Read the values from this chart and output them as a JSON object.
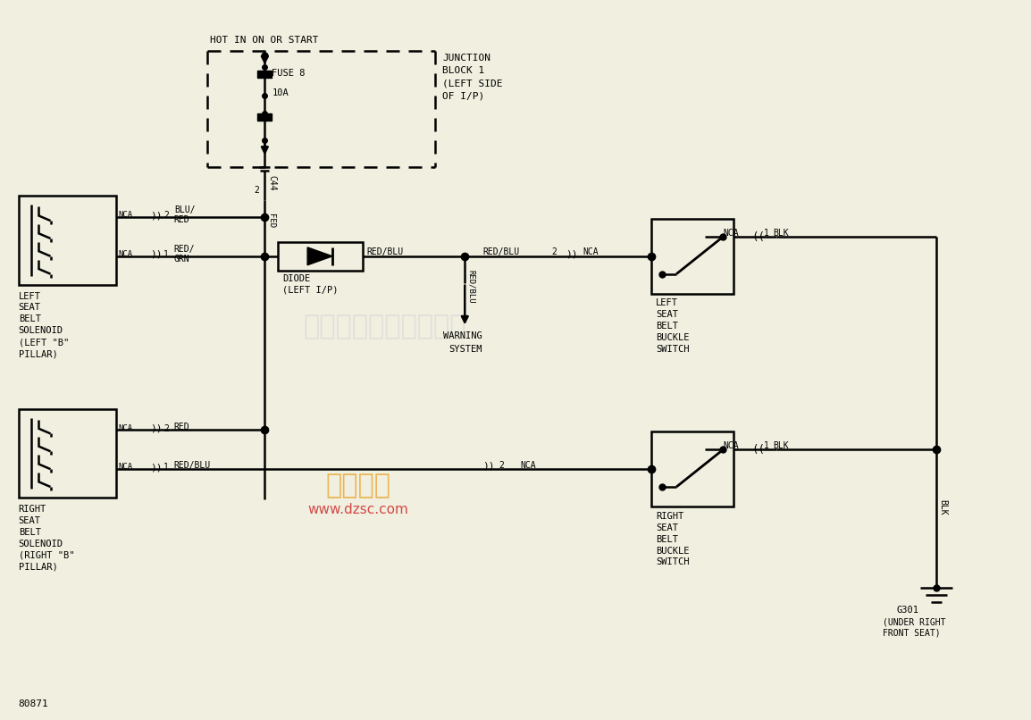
{
  "bg_color": "#f0efe0",
  "line_color": "#000000",
  "fig_width": 11.54,
  "fig_height": 8.06,
  "dpi": 100,
  "bottom_label": "80871",
  "junction_label": [
    "JUNCTION",
    "BLOCK 1",
    "(LEFT SIDE",
    "OF I/P)"
  ],
  "hot_label": "HOT IN ON OR START",
  "fuse_label": "FUSE 8",
  "fuse_amp": "10A",
  "connector_label": "C44",
  "connector_pin": "2",
  "fed_label": "FED",
  "diode_label": [
    "DIODE",
    "(LEFT I/P)"
  ],
  "warning_label": [
    "WARNING",
    "SYSTEM"
  ],
  "redblu_label": "RED/BLU",
  "left_sol_label": [
    "LEFT",
    "SEAT",
    "BELT",
    "SOLENOID",
    "(LEFT \"B\"",
    "PILLAR)"
  ],
  "right_sol_label": [
    "RIGHT",
    "SEAT",
    "BELT",
    "SOLENOID",
    "(RIGHT \"B\"",
    "PILLAR)"
  ],
  "left_sw_label": [
    "LEFT",
    "SEAT",
    "BELT",
    "BUCKLE",
    "SWITCH"
  ],
  "right_sw_label": [
    "RIGHT",
    "SEAT",
    "BELT",
    "BUCKLE",
    "SWITCH"
  ],
  "g301_label": [
    "G301",
    "(UNDER RIGHT",
    "FRONT SEAT)"
  ],
  "wm1_text": "杭州将睢科技有限公司",
  "wm2_text": "维库一下",
  "wm3_text": "www.dzsc.com"
}
